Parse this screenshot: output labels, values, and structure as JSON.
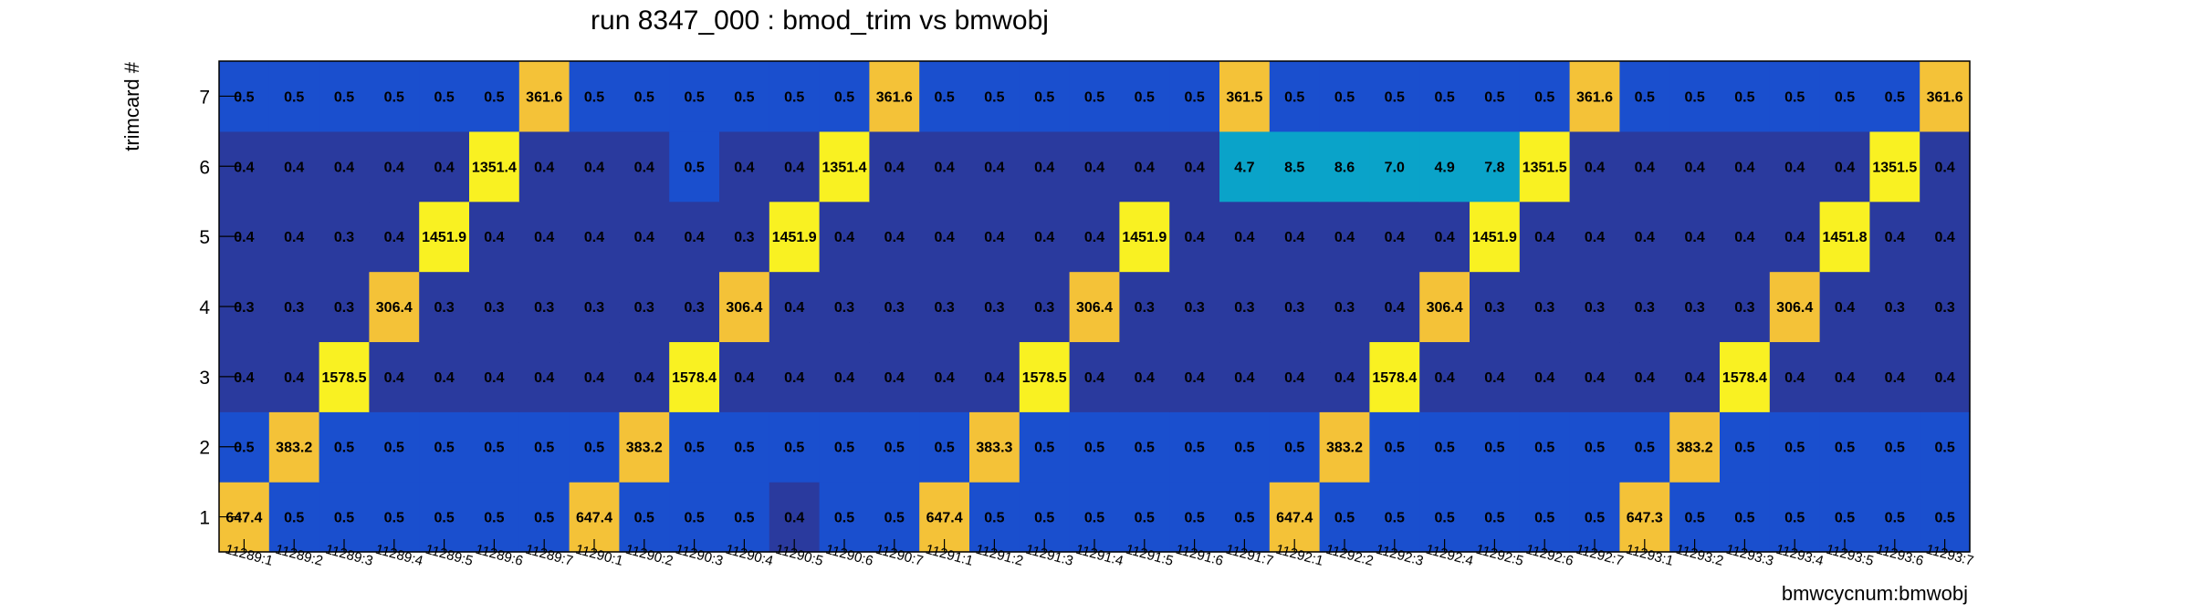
{
  "chart_data": {
    "type": "heatmap",
    "title": "run 8347_000 : bmod_trim vs bmwobj",
    "xlabel": "bmwcycnum:bmwobj",
    "ylabel": "trimcard #",
    "x_categories": [
      "11289:1",
      "11289:2",
      "11289:3",
      "11289:4",
      "11289:5",
      "11289:6",
      "11289:7",
      "11290:1",
      "11290:2",
      "11290:3",
      "11290:4",
      "11290:5",
      "11290:6",
      "11290:7",
      "11291:1",
      "11291:2",
      "11291:3",
      "11291:4",
      "11291:5",
      "11291:6",
      "11291:7",
      "11292:1",
      "11292:2",
      "11292:3",
      "11292:4",
      "11292:5",
      "11292:6",
      "11292:7",
      "11293:1",
      "11293:2",
      "11293:3",
      "11293:4",
      "11293:5",
      "11293:6",
      "11293:7"
    ],
    "y_categories": [
      "1",
      "2",
      "3",
      "4",
      "5",
      "6",
      "7"
    ],
    "values": [
      [
        "647.4",
        "0.5",
        "0.5",
        "0.5",
        "0.5",
        "0.5",
        "0.5",
        "647.4",
        "0.5",
        "0.5",
        "0.5",
        "0.4",
        "0.5",
        "0.5",
        "647.4",
        "0.5",
        "0.5",
        "0.5",
        "0.5",
        "0.5",
        "0.5",
        "647.4",
        "0.5",
        "0.5",
        "0.5",
        "0.5",
        "0.5",
        "0.5",
        "647.3",
        "0.5",
        "0.5",
        "0.5",
        "0.5",
        "0.5",
        "0.5"
      ],
      [
        "0.5",
        "383.2",
        "0.5",
        "0.5",
        "0.5",
        "0.5",
        "0.5",
        "0.5",
        "383.2",
        "0.5",
        "0.5",
        "0.5",
        "0.5",
        "0.5",
        "0.5",
        "383.3",
        "0.5",
        "0.5",
        "0.5",
        "0.5",
        "0.5",
        "0.5",
        "383.2",
        "0.5",
        "0.5",
        "0.5",
        "0.5",
        "0.5",
        "0.5",
        "383.2",
        "0.5",
        "0.5",
        "0.5",
        "0.5",
        "0.5"
      ],
      [
        "0.4",
        "0.4",
        "1578.5",
        "0.4",
        "0.4",
        "0.4",
        "0.4",
        "0.4",
        "0.4",
        "1578.4",
        "0.4",
        "0.4",
        "0.4",
        "0.4",
        "0.4",
        "0.4",
        "1578.5",
        "0.4",
        "0.4",
        "0.4",
        "0.4",
        "0.4",
        "0.4",
        "1578.4",
        "0.4",
        "0.4",
        "0.4",
        "0.4",
        "0.4",
        "0.4",
        "1578.4",
        "0.4",
        "0.4",
        "0.4",
        "0.4"
      ],
      [
        "0.3",
        "0.3",
        "0.3",
        "306.4",
        "0.3",
        "0.3",
        "0.3",
        "0.3",
        "0.3",
        "0.3",
        "306.4",
        "0.4",
        "0.3",
        "0.3",
        "0.3",
        "0.3",
        "0.3",
        "306.4",
        "0.3",
        "0.3",
        "0.3",
        "0.3",
        "0.3",
        "0.4",
        "306.4",
        "0.3",
        "0.3",
        "0.3",
        "0.3",
        "0.3",
        "0.3",
        "306.4",
        "0.4",
        "0.3",
        "0.3"
      ],
      [
        "0.4",
        "0.4",
        "0.3",
        "0.4",
        "1451.9",
        "0.4",
        "0.4",
        "0.4",
        "0.4",
        "0.4",
        "0.3",
        "1451.9",
        "0.4",
        "0.4",
        "0.4",
        "0.4",
        "0.4",
        "0.4",
        "1451.9",
        "0.4",
        "0.4",
        "0.4",
        "0.4",
        "0.4",
        "0.4",
        "1451.9",
        "0.4",
        "0.4",
        "0.4",
        "0.4",
        "0.4",
        "0.4",
        "1451.8",
        "0.4",
        "0.4"
      ],
      [
        "0.4",
        "0.4",
        "0.4",
        "0.4",
        "0.4",
        "1351.4",
        "0.4",
        "0.4",
        "0.4",
        "0.5",
        "0.4",
        "0.4",
        "1351.4",
        "0.4",
        "0.4",
        "0.4",
        "0.4",
        "0.4",
        "0.4",
        "0.4",
        "4.7",
        "8.5",
        "8.6",
        "7.0",
        "4.9",
        "7.8",
        "1351.5",
        "0.4",
        "0.4",
        "0.4",
        "0.4",
        "0.4",
        "0.4",
        "1351.5",
        "0.4"
      ],
      [
        "0.5",
        "0.5",
        "0.5",
        "0.5",
        "0.5",
        "0.5",
        "361.6",
        "0.5",
        "0.5",
        "0.5",
        "0.5",
        "0.5",
        "0.5",
        "361.6",
        "0.5",
        "0.5",
        "0.5",
        "0.5",
        "0.5",
        "0.5",
        "361.5",
        "0.5",
        "0.5",
        "0.5",
        "0.5",
        "0.5",
        "0.5",
        "361.6",
        "0.5",
        "0.5",
        "0.5",
        "0.5",
        "0.5",
        "0.5",
        "361.6"
      ]
    ],
    "colors": {
      "blue_05": "#1a4fce",
      "navy_03_04": "#2a3a9e",
      "cyan_mid": "#0aa3c9",
      "yellow_high": "#f9f122",
      "orange_mid": "#f4c238",
      "frame": "#000000"
    },
    "grid": false
  }
}
